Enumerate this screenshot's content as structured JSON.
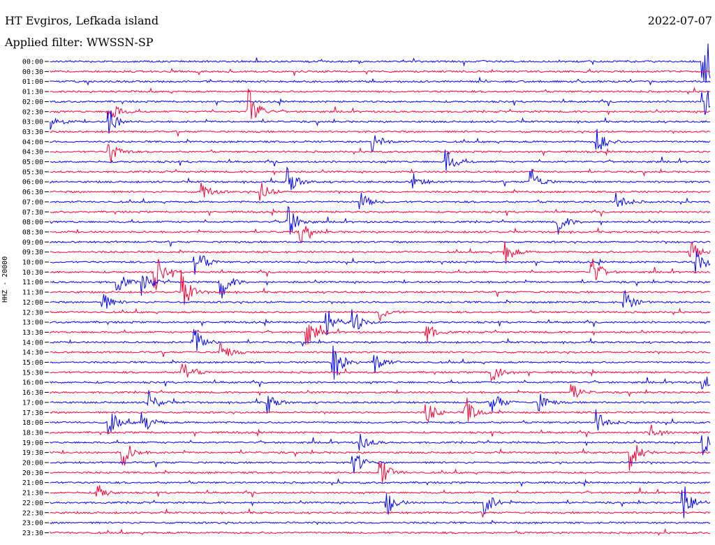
{
  "header": {
    "station": "HT Evgiros, Lefkada island",
    "filter": "Applied filter: WWSSN-SP",
    "date": "2022-07-07"
  },
  "chart_data": {
    "type": "line",
    "title": "HT Evgiros, Lefkada island",
    "subtitle": "Applied filter: WWSSN-SP",
    "ylabel": "HHZ - 20000",
    "xlabel": "",
    "tick_labels": [
      "00:00",
      "00:30",
      "01:00",
      "01:30",
      "02:00",
      "02:30",
      "03:00",
      "03:30",
      "04:00",
      "04:30",
      "05:00",
      "05:30",
      "06:00",
      "06:30",
      "07:00",
      "07:30",
      "08:00",
      "08:30",
      "09:00",
      "09:30",
      "10:00",
      "10:30",
      "11:00",
      "11:30",
      "12:00",
      "12:30",
      "13:00",
      "13:30",
      "14:00",
      "14:30",
      "15:00",
      "15:30",
      "16:00",
      "16:30",
      "17:00",
      "17:30",
      "18:00",
      "18:30",
      "19:00",
      "19:30",
      "20:00",
      "20:30",
      "21:00",
      "21:30",
      "22:00",
      "22:30",
      "23:00",
      "23:30"
    ],
    "colors": {
      "odd_rows": "#0000ff",
      "even_rows": "#ff0033",
      "text": "#000000"
    },
    "series_style": "alternating blue/red helicorder traces, one per 30 minutes",
    "events": [
      {
        "row": 0,
        "x": 0.99,
        "amp": 60,
        "color": "blue"
      },
      {
        "row": 4,
        "x": 0.99,
        "amp": 30,
        "color": "blue"
      },
      {
        "row": 5,
        "x": 0.3,
        "amp": 45,
        "color": "red"
      },
      {
        "row": 5,
        "x": 0.09,
        "amp": 20,
        "color": "red"
      },
      {
        "row": 6,
        "x": 0.0,
        "amp": 15,
        "color": "blue"
      },
      {
        "row": 6,
        "x": 0.09,
        "amp": 20,
        "color": "blue"
      },
      {
        "row": 8,
        "x": 0.49,
        "amp": 15,
        "color": "blue"
      },
      {
        "row": 8,
        "x": 0.83,
        "amp": 18,
        "color": "blue"
      },
      {
        "row": 9,
        "x": 0.09,
        "amp": 20,
        "color": "red"
      },
      {
        "row": 10,
        "x": 0.6,
        "amp": 20,
        "color": "blue"
      },
      {
        "row": 12,
        "x": 0.36,
        "amp": 25,
        "color": "blue"
      },
      {
        "row": 12,
        "x": 0.55,
        "amp": 12,
        "color": "blue"
      },
      {
        "row": 12,
        "x": 0.73,
        "amp": 20,
        "color": "blue"
      },
      {
        "row": 13,
        "x": 0.23,
        "amp": 15,
        "color": "red"
      },
      {
        "row": 13,
        "x": 0.32,
        "amp": 15,
        "color": "red"
      },
      {
        "row": 14,
        "x": 0.47,
        "amp": 15,
        "color": "blue"
      },
      {
        "row": 14,
        "x": 0.86,
        "amp": 15,
        "color": "blue"
      },
      {
        "row": 16,
        "x": 0.36,
        "amp": 30,
        "color": "blue"
      },
      {
        "row": 16,
        "x": 0.77,
        "amp": 18,
        "color": "blue"
      },
      {
        "row": 17,
        "x": 0.38,
        "amp": 15,
        "color": "red"
      },
      {
        "row": 19,
        "x": 0.69,
        "amp": 18,
        "color": "red"
      },
      {
        "row": 19,
        "x": 0.97,
        "amp": 18,
        "color": "red"
      },
      {
        "row": 20,
        "x": 0.22,
        "amp": 25,
        "color": "blue"
      },
      {
        "row": 20,
        "x": 0.98,
        "amp": 20,
        "color": "blue"
      },
      {
        "row": 21,
        "x": 0.16,
        "amp": 25,
        "color": "red"
      },
      {
        "row": 21,
        "x": 0.82,
        "amp": 25,
        "color": "red"
      },
      {
        "row": 22,
        "x": 0.1,
        "amp": 18,
        "color": "blue"
      },
      {
        "row": 22,
        "x": 0.14,
        "amp": 18,
        "color": "blue"
      },
      {
        "row": 22,
        "x": 0.26,
        "amp": 25,
        "color": "blue"
      },
      {
        "row": 23,
        "x": 0.2,
        "amp": 30,
        "color": "red"
      },
      {
        "row": 24,
        "x": 0.08,
        "amp": 15,
        "color": "blue"
      },
      {
        "row": 24,
        "x": 0.87,
        "amp": 18,
        "color": "blue"
      },
      {
        "row": 25,
        "x": 0.5,
        "amp": 12,
        "color": "red"
      },
      {
        "row": 26,
        "x": 0.42,
        "amp": 20,
        "color": "blue"
      },
      {
        "row": 26,
        "x": 0.46,
        "amp": 18,
        "color": "blue"
      },
      {
        "row": 27,
        "x": 0.39,
        "amp": 20,
        "color": "red"
      },
      {
        "row": 27,
        "x": 0.57,
        "amp": 15,
        "color": "red"
      },
      {
        "row": 28,
        "x": 0.22,
        "amp": 20,
        "color": "blue"
      },
      {
        "row": 29,
        "x": 0.26,
        "amp": 15,
        "color": "red"
      },
      {
        "row": 30,
        "x": 0.43,
        "amp": 28,
        "color": "blue"
      },
      {
        "row": 30,
        "x": 0.49,
        "amp": 20,
        "color": "blue"
      },
      {
        "row": 31,
        "x": 0.2,
        "amp": 20,
        "color": "red"
      },
      {
        "row": 31,
        "x": 0.67,
        "amp": 18,
        "color": "red"
      },
      {
        "row": 32,
        "x": 0.99,
        "amp": 12,
        "color": "blue"
      },
      {
        "row": 33,
        "x": 0.79,
        "amp": 15,
        "color": "red"
      },
      {
        "row": 34,
        "x": 0.15,
        "amp": 18,
        "color": "blue"
      },
      {
        "row": 34,
        "x": 0.33,
        "amp": 15,
        "color": "blue"
      },
      {
        "row": 34,
        "x": 0.67,
        "amp": 20,
        "color": "blue"
      },
      {
        "row": 34,
        "x": 0.74,
        "amp": 18,
        "color": "blue"
      },
      {
        "row": 35,
        "x": 0.57,
        "amp": 20,
        "color": "red"
      },
      {
        "row": 35,
        "x": 0.63,
        "amp": 25,
        "color": "red"
      },
      {
        "row": 36,
        "x": 0.09,
        "amp": 18,
        "color": "blue"
      },
      {
        "row": 36,
        "x": 0.14,
        "amp": 20,
        "color": "blue"
      },
      {
        "row": 36,
        "x": 0.83,
        "amp": 18,
        "color": "blue"
      },
      {
        "row": 37,
        "x": 0.91,
        "amp": 15,
        "color": "red"
      },
      {
        "row": 38,
        "x": 0.99,
        "amp": 20,
        "color": "blue"
      },
      {
        "row": 38,
        "x": 0.47,
        "amp": 15,
        "color": "blue"
      },
      {
        "row": 39,
        "x": 0.11,
        "amp": 25,
        "color": "red"
      },
      {
        "row": 39,
        "x": 0.88,
        "amp": 25,
        "color": "red"
      },
      {
        "row": 40,
        "x": 0.46,
        "amp": 20,
        "color": "blue"
      },
      {
        "row": 41,
        "x": 0.5,
        "amp": 25,
        "color": "red"
      },
      {
        "row": 43,
        "x": 0.07,
        "amp": 15,
        "color": "red"
      },
      {
        "row": 44,
        "x": 0.51,
        "amp": 20,
        "color": "blue"
      },
      {
        "row": 44,
        "x": 0.66,
        "amp": 18,
        "color": "blue"
      },
      {
        "row": 44,
        "x": 0.96,
        "amp": 30,
        "color": "blue"
      }
    ]
  }
}
